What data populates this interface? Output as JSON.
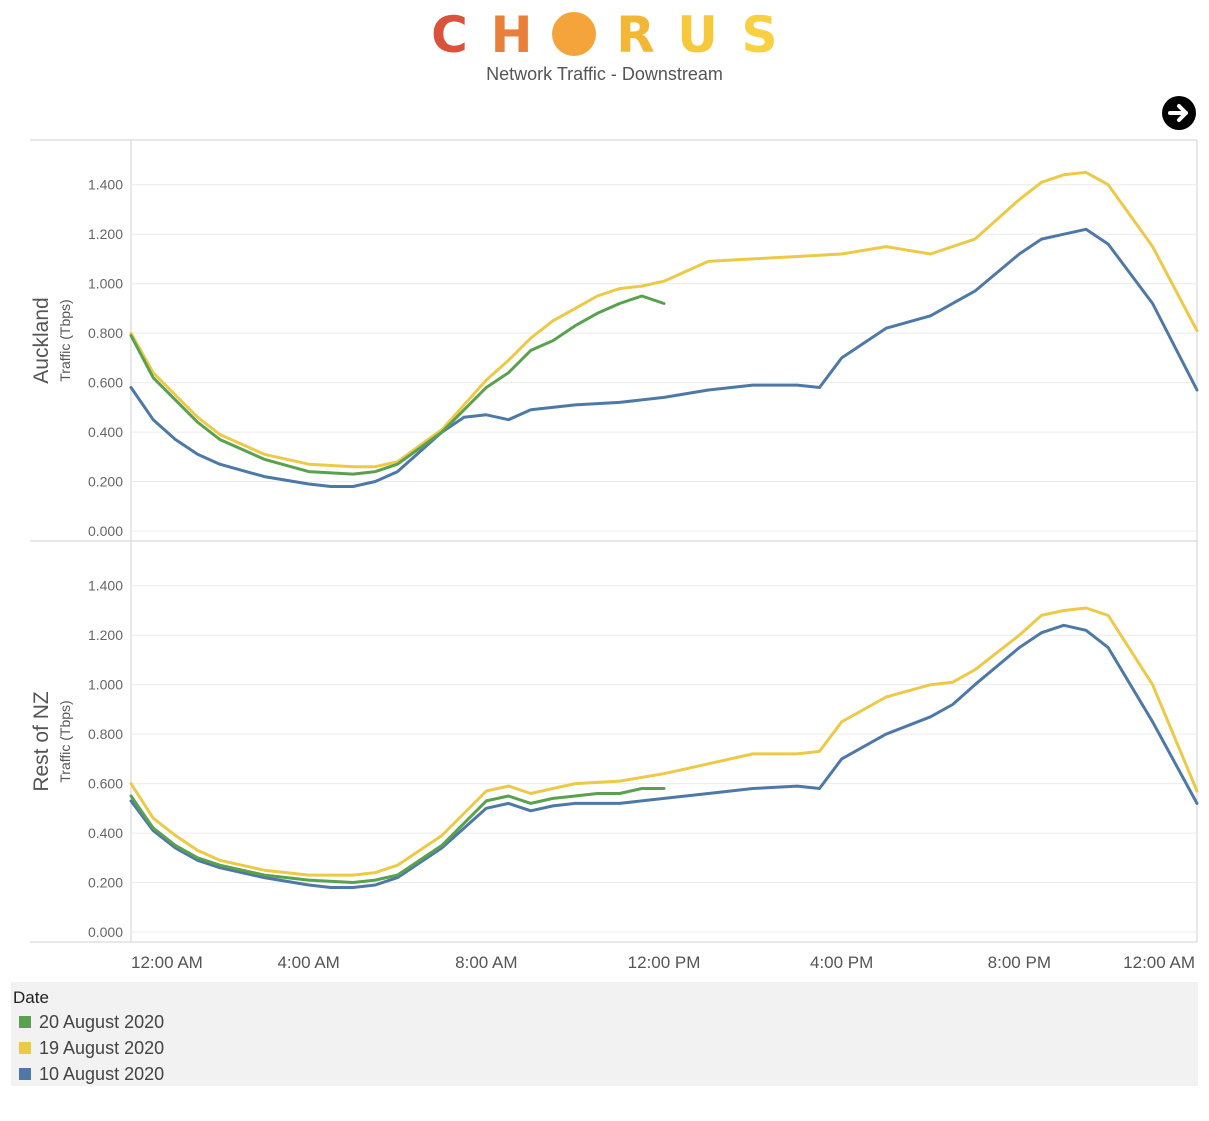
{
  "header": {
    "logo_letters": [
      "C",
      "H",
      "O",
      "R",
      "U",
      "S"
    ],
    "logo_colors": [
      "#d9533c",
      "#e8803a",
      "#f4a43a",
      "#f2b734",
      "#f6c93b",
      "#f8d141"
    ],
    "subtitle": "Network Traffic - Downstream",
    "next_icon": "arrow-right-circle-icon"
  },
  "legend": {
    "title": "Date",
    "items": [
      {
        "label": "20 August 2020",
        "color": "#59a14f"
      },
      {
        "label": "19 August 2020",
        "color": "#edc948"
      },
      {
        "label": "10 August 2020",
        "color": "#4e79a7"
      }
    ]
  },
  "chart_data": {
    "type": "line",
    "x_unit": "hour of day",
    "x_ticks": [
      {
        "hour": 0,
        "label": "12:00 AM"
      },
      {
        "hour": 4,
        "label": "4:00 AM"
      },
      {
        "hour": 8,
        "label": "8:00 AM"
      },
      {
        "hour": 12,
        "label": "12:00 PM"
      },
      {
        "hour": 16,
        "label": "4:00 PM"
      },
      {
        "hour": 20,
        "label": "8:00 PM"
      },
      {
        "hour": 24,
        "label": "12:00 AM"
      }
    ],
    "xlim": [
      0,
      24
    ],
    "y_ticks": [
      "0.000",
      "0.200",
      "0.400",
      "0.600",
      "0.800",
      "1.000",
      "1.200",
      "1.400"
    ],
    "ylim": [
      0,
      1.5
    ],
    "grid": true,
    "legend_position": "bottom-left",
    "panels": [
      {
        "row_label": "Auckland",
        "ylabel": "Traffic (Tbps)",
        "series": [
          {
            "name": "20 August 2020",
            "color": "#59a14f",
            "x": [
              0,
              0.5,
              1,
              1.5,
              2,
              3,
              4,
              5,
              5.5,
              6,
              7,
              8,
              8.5,
              9,
              9.5,
              10,
              10.5,
              11,
              11.5,
              12
            ],
            "y": [
              0.79,
              0.62,
              0.53,
              0.44,
              0.37,
              0.29,
              0.24,
              0.23,
              0.24,
              0.27,
              0.4,
              0.58,
              0.64,
              0.73,
              0.77,
              0.83,
              0.88,
              0.92,
              0.95,
              0.92
            ]
          },
          {
            "name": "19 August 2020",
            "color": "#edc948",
            "x": [
              0,
              0.5,
              1,
              1.5,
              2,
              3,
              4,
              5,
              5.5,
              6,
              7,
              8,
              8.5,
              9,
              9.5,
              10,
              10.5,
              11,
              11.5,
              12,
              12.5,
              13,
              14,
              15,
              16,
              17,
              18,
              19,
              20,
              20.5,
              21,
              21.5,
              22,
              23,
              24
            ],
            "y": [
              0.8,
              0.64,
              0.55,
              0.46,
              0.39,
              0.31,
              0.27,
              0.26,
              0.26,
              0.28,
              0.41,
              0.61,
              0.69,
              0.78,
              0.85,
              0.9,
              0.95,
              0.98,
              0.99,
              1.01,
              1.05,
              1.09,
              1.1,
              1.11,
              1.12,
              1.15,
              1.12,
              1.18,
              1.34,
              1.41,
              1.44,
              1.45,
              1.4,
              1.15,
              0.81
            ]
          },
          {
            "name": "10 August 2020",
            "color": "#4e79a7",
            "x": [
              0,
              0.5,
              1,
              1.5,
              2,
              3,
              4,
              4.5,
              5,
              5.5,
              6,
              7,
              7.5,
              8,
              8.5,
              9,
              10,
              11,
              12,
              13,
              14,
              15,
              15.5,
              16,
              17,
              18,
              19,
              20,
              20.5,
              21,
              21.5,
              22,
              23,
              24
            ],
            "y": [
              0.58,
              0.45,
              0.37,
              0.31,
              0.27,
              0.22,
              0.19,
              0.18,
              0.18,
              0.2,
              0.24,
              0.4,
              0.46,
              0.47,
              0.45,
              0.49,
              0.51,
              0.52,
              0.54,
              0.57,
              0.59,
              0.59,
              0.58,
              0.7,
              0.82,
              0.87,
              0.97,
              1.12,
              1.18,
              1.2,
              1.22,
              1.16,
              0.92,
              0.57
            ]
          }
        ]
      },
      {
        "row_label": "Rest of NZ",
        "ylabel": "Traffic (Tbps)",
        "series": [
          {
            "name": "20 August 2020",
            "color": "#59a14f",
            "x": [
              0,
              0.5,
              1,
              1.5,
              2,
              3,
              4,
              5,
              5.5,
              6,
              7,
              8,
              8.5,
              9,
              9.5,
              10,
              10.5,
              11,
              11.5,
              12
            ],
            "y": [
              0.55,
              0.42,
              0.35,
              0.3,
              0.27,
              0.23,
              0.21,
              0.2,
              0.21,
              0.23,
              0.35,
              0.53,
              0.55,
              0.52,
              0.54,
              0.55,
              0.56,
              0.56,
              0.58,
              0.58
            ]
          },
          {
            "name": "19 August 2020",
            "color": "#edc948",
            "x": [
              0,
              0.5,
              1,
              1.5,
              2,
              3,
              4,
              5,
              5.5,
              6,
              7,
              8,
              8.5,
              9,
              9.5,
              10,
              11,
              12,
              13,
              14,
              15,
              15.5,
              16,
              17,
              18,
              18.5,
              19,
              20,
              20.5,
              21,
              21.5,
              22,
              23,
              24
            ],
            "y": [
              0.6,
              0.46,
              0.39,
              0.33,
              0.29,
              0.25,
              0.23,
              0.23,
              0.24,
              0.27,
              0.39,
              0.57,
              0.59,
              0.56,
              0.58,
              0.6,
              0.61,
              0.64,
              0.68,
              0.72,
              0.72,
              0.73,
              0.85,
              0.95,
              1.0,
              1.01,
              1.06,
              1.2,
              1.28,
              1.3,
              1.31,
              1.28,
              1.0,
              0.57
            ]
          },
          {
            "name": "10 August 2020",
            "color": "#4e79a7",
            "x": [
              0,
              0.5,
              1,
              1.5,
              2,
              3,
              4,
              4.5,
              5,
              5.5,
              6,
              7,
              8,
              8.5,
              9,
              9.5,
              10,
              11,
              12,
              13,
              14,
              15,
              15.5,
              16,
              17,
              18,
              18.5,
              19,
              20,
              20.5,
              21,
              21.5,
              22,
              23,
              24
            ],
            "y": [
              0.53,
              0.41,
              0.34,
              0.29,
              0.26,
              0.22,
              0.19,
              0.18,
              0.18,
              0.19,
              0.22,
              0.34,
              0.5,
              0.52,
              0.49,
              0.51,
              0.52,
              0.52,
              0.54,
              0.56,
              0.58,
              0.59,
              0.58,
              0.7,
              0.8,
              0.87,
              0.92,
              1.0,
              1.15,
              1.21,
              1.24,
              1.22,
              1.15,
              0.85,
              0.52
            ]
          }
        ]
      }
    ]
  }
}
